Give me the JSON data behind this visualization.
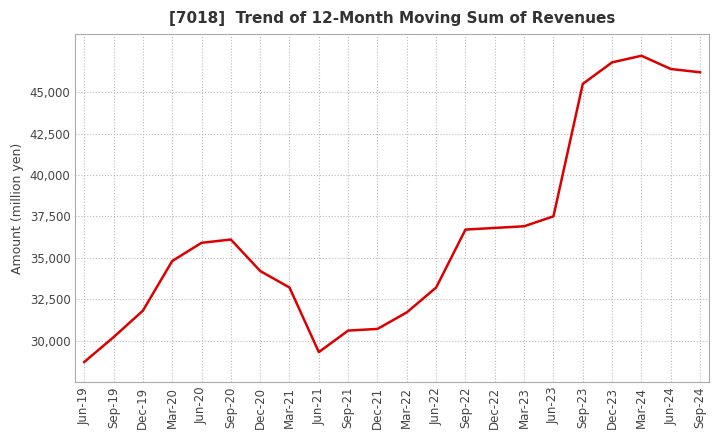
{
  "title": "[7018]  Trend of 12-Month Moving Sum of Revenues",
  "ylabel": "Amount (million yen)",
  "background_color": "#ffffff",
  "grid_color": "#bbbbbb",
  "line_color": "#dd0000",
  "x_labels": [
    "Jun-19",
    "Sep-19",
    "Dec-19",
    "Mar-20",
    "Jun-20",
    "Sep-20",
    "Dec-20",
    "Mar-21",
    "Jun-21",
    "Sep-21",
    "Dec-21",
    "Mar-22",
    "Jun-22",
    "Sep-22",
    "Dec-22",
    "Mar-23",
    "Jun-23",
    "Sep-23",
    "Dec-23",
    "Mar-24",
    "Jun-24",
    "Sep-24"
  ],
  "values": [
    28700,
    30200,
    31800,
    34800,
    35900,
    36100,
    34200,
    33200,
    29300,
    30600,
    30700,
    31700,
    33200,
    36700,
    36800,
    36900,
    37500,
    45500,
    46800,
    47200,
    46400,
    46200
  ],
  "ylim": [
    27500,
    48500
  ],
  "yticks": [
    30000,
    32500,
    35000,
    37500,
    40000,
    42500,
    45000
  ],
  "title_fontsize": 11,
  "label_fontsize": 9,
  "tick_fontsize": 8.5
}
